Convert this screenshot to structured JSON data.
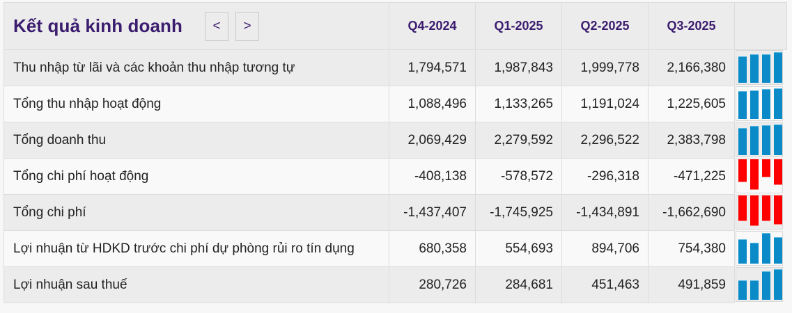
{
  "header": {
    "title": "Kết quả kinh doanh",
    "prev_label": "<",
    "next_label": ">",
    "periods": [
      "Q4-2024",
      "Q1-2025",
      "Q2-2025",
      "Q3-2025"
    ]
  },
  "colors": {
    "title": "#3b1c6e",
    "positive_bar": "#0b8ac8",
    "negative_bar": "#ff0000",
    "row_odd": "#ececec",
    "row_even": "#f9f9f9"
  },
  "rows": [
    {
      "label": "Thu nhập từ lãi và các khoản thu nhập tương tự",
      "values": [
        "1,794,571",
        "1,987,843",
        "1,999,778",
        "2,166,380"
      ],
      "raw": [
        1794571,
        1987843,
        1999778,
        2166380
      ]
    },
    {
      "label": "Tổng thu nhập hoạt động",
      "values": [
        "1,088,496",
        "1,133,265",
        "1,191,024",
        "1,225,605"
      ],
      "raw": [
        1088496,
        1133265,
        1191024,
        1225605
      ]
    },
    {
      "label": "Tổng doanh thu",
      "values": [
        "2,069,429",
        "2,279,592",
        "2,296,522",
        "2,383,798"
      ],
      "raw": [
        2069429,
        2279592,
        2296522,
        2383798
      ]
    },
    {
      "label": "Tổng chi phí hoạt động",
      "values": [
        "-408,138",
        "-578,572",
        "-296,318",
        "-471,225"
      ],
      "raw": [
        -408138,
        -578572,
        -296318,
        -471225
      ]
    },
    {
      "label": "Tổng chi phí",
      "values": [
        "-1,437,407",
        "-1,745,925",
        "-1,434,891",
        "-1,662,690"
      ],
      "raw": [
        -1437407,
        -1745925,
        -1434891,
        -1662690
      ]
    },
    {
      "label": "Lợi nhuận từ HDKD trước chi phí dự phòng rủi ro tín dụng",
      "values": [
        "680,358",
        "554,693",
        "894,706",
        "754,380"
      ],
      "raw": [
        680358,
        554693,
        894706,
        754380
      ]
    },
    {
      "label": "Lợi nhuận sau thuế",
      "values": [
        "280,726",
        "284,681",
        "451,463",
        "491,859"
      ],
      "raw": [
        280726,
        284681,
        451463,
        491859
      ]
    }
  ]
}
